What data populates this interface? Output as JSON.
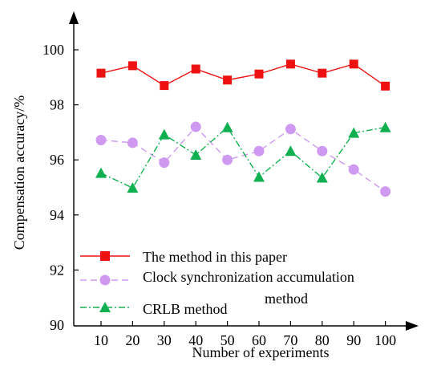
{
  "chart_data": {
    "type": "line",
    "title": "",
    "xlabel": "Number of experiments",
    "ylabel": "Compensation accuracy/%",
    "x": [
      10,
      20,
      30,
      40,
      50,
      60,
      70,
      80,
      90,
      100
    ],
    "x_ticks": [
      "10",
      "20",
      "30",
      "40",
      "50",
      "60",
      "70",
      "80",
      "90",
      "100"
    ],
    "y_ticks": [
      "90",
      "92",
      "94",
      "96",
      "98",
      "100"
    ],
    "ylim": [
      90,
      100
    ],
    "grid": false,
    "legend_position": "bottom-left",
    "series": [
      {
        "name": "The method in this paper",
        "color": "#ee1111",
        "marker": "square",
        "line_style": "solid",
        "values": [
          99.15,
          99.42,
          98.7,
          99.3,
          98.9,
          99.12,
          99.48,
          99.15,
          99.48,
          98.68
        ]
      },
      {
        "name": "Clock synchronization accumulation method",
        "color": "#cf99f2",
        "marker": "circle",
        "line_style": "dashed",
        "values": [
          96.72,
          96.62,
          95.9,
          97.2,
          96.0,
          96.32,
          97.12,
          96.32,
          95.65,
          94.85
        ]
      },
      {
        "name": "CRLB method",
        "color": "#10b050",
        "marker": "triangle",
        "line_style": "dashdot",
        "values": [
          95.52,
          94.98,
          96.92,
          96.18,
          97.18,
          95.38,
          96.32,
          95.35,
          96.98,
          97.18
        ]
      }
    ],
    "legend": {
      "line1": "The method in this paper",
      "line2": "Clock synchronization accumulation",
      "line2_wrap": "method",
      "line3": "CRLB method"
    }
  }
}
